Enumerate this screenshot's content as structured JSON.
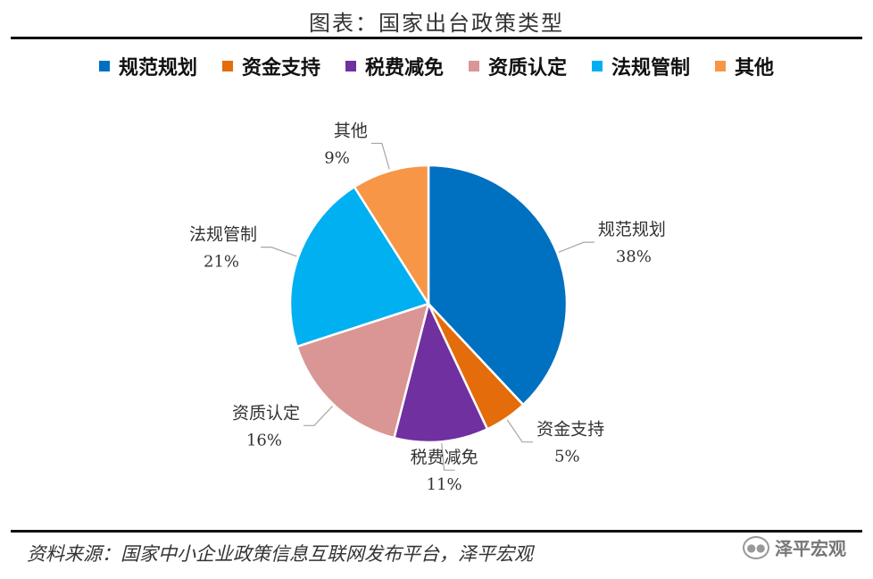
{
  "title": "图表：国家出台政策类型",
  "source": "资料来源：国家中小企业政策信息互联网发布平台，泽平宏观",
  "watermark": {
    "icon": "wechat-icon",
    "text": "泽平宏观"
  },
  "chart_data": {
    "type": "pie",
    "title": "图表：国家出台政策类型",
    "legend_position": "top",
    "slices": [
      {
        "label": "规范规划",
        "value": 38,
        "display": "38%",
        "color": "#0070C0"
      },
      {
        "label": "资金支持",
        "value": 5,
        "display": "5%",
        "color": "#E46C0A"
      },
      {
        "label": "税费减免",
        "value": 11,
        "display": "11%",
        "color": "#7030A0"
      },
      {
        "label": "资质认定",
        "value": 16,
        "display": "16%",
        "color": "#D99694"
      },
      {
        "label": "法规管制",
        "value": 21,
        "display": "21%",
        "color": "#00B0F0"
      },
      {
        "label": "其他",
        "value": 9,
        "display": "9%",
        "color": "#F79646"
      }
    ]
  }
}
